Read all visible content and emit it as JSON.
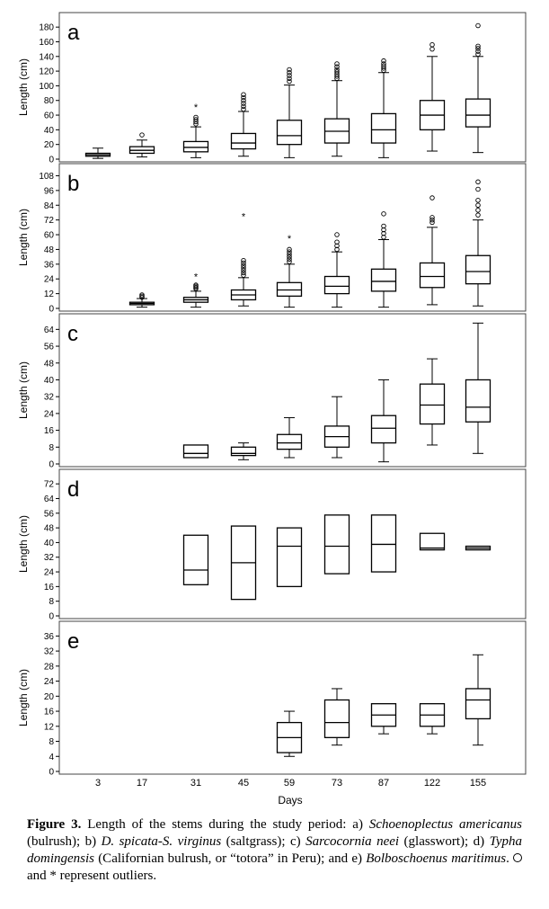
{
  "chart_data": {
    "type": "box",
    "x_categories": [
      "3",
      "17",
      "31",
      "45",
      "59",
      "73",
      "87",
      "122",
      "155"
    ],
    "xlabel": "Days",
    "panels": [
      {
        "letter": "a",
        "ylabel": "Length (cm)",
        "ylim": [
          0,
          190
        ],
        "yticks": [
          0,
          20,
          40,
          60,
          80,
          100,
          120,
          140,
          160,
          180
        ],
        "boxes": [
          {
            "x": "3",
            "min": 1,
            "q1": 4,
            "median": 6,
            "q3": 8,
            "max": 15,
            "outliers": [],
            "extremes": []
          },
          {
            "x": "17",
            "min": 3,
            "q1": 8,
            "median": 12,
            "q3": 17,
            "max": 26,
            "outliers": [
              33
            ],
            "extremes": []
          },
          {
            "x": "31",
            "min": 2,
            "q1": 10,
            "median": 16,
            "q3": 24,
            "max": 44,
            "outliers": [
              48,
              51,
              54,
              57
            ],
            "extremes": [
              71
            ]
          },
          {
            "x": "45",
            "min": 4,
            "q1": 14,
            "median": 22,
            "q3": 35,
            "max": 65,
            "outliers": [
              68,
              72,
              76,
              80,
              84,
              88
            ],
            "extremes": []
          },
          {
            "x": "59",
            "min": 2,
            "q1": 20,
            "median": 32,
            "q3": 53,
            "max": 101,
            "outliers": [
              106,
              110,
              114,
              118,
              122
            ],
            "extremes": []
          },
          {
            "x": "73",
            "min": 4,
            "q1": 22,
            "median": 38,
            "q3": 55,
            "max": 107,
            "outliers": [
              110,
              113,
              116,
              119,
              122,
              126,
              130
            ],
            "extremes": []
          },
          {
            "x": "87",
            "min": 2,
            "q1": 22,
            "median": 40,
            "q3": 62,
            "max": 118,
            "outliers": [
              121,
              124,
              127,
              130,
              134
            ],
            "extremes": []
          },
          {
            "x": "122",
            "min": 11,
            "q1": 40,
            "median": 60,
            "q3": 80,
            "max": 140,
            "outliers": [
              150,
              156
            ],
            "extremes": []
          },
          {
            "x": "155",
            "min": 9,
            "q1": 44,
            "median": 60,
            "q3": 82,
            "max": 140,
            "outliers": [
              143,
              147,
              151,
              154,
              182
            ],
            "extremes": []
          }
        ]
      },
      {
        "letter": "b",
        "ylabel": "Length (cm)",
        "ylim": [
          0,
          112
        ],
        "yticks": [
          0,
          12,
          24,
          36,
          48,
          60,
          72,
          84,
          96,
          108
        ],
        "boxes": [
          {
            "x": "17",
            "min": 1,
            "q1": 3,
            "median": 4,
            "q3": 5,
            "max": 8,
            "outliers": [
              9,
              10,
              11
            ],
            "extremes": []
          },
          {
            "x": "31",
            "min": 1,
            "q1": 5,
            "median": 7,
            "q3": 9,
            "max": 14,
            "outliers": [
              16,
              17,
              18,
              19
            ],
            "extremes": [
              26
            ]
          },
          {
            "x": "45",
            "min": 2,
            "q1": 7,
            "median": 11,
            "q3": 15,
            "max": 25,
            "outliers": [
              27,
              29,
              31,
              33,
              35,
              37,
              39
            ],
            "extremes": [
              75
            ]
          },
          {
            "x": "59",
            "min": 1,
            "q1": 10,
            "median": 15,
            "q3": 21,
            "max": 36,
            "outliers": [
              38,
              40,
              42,
              44,
              46,
              48
            ],
            "extremes": [
              57
            ]
          },
          {
            "x": "73",
            "min": 1,
            "q1": 12,
            "median": 18,
            "q3": 26,
            "max": 46,
            "outliers": [
              48,
              51,
              54,
              60
            ],
            "extremes": []
          },
          {
            "x": "87",
            "min": 1,
            "q1": 14,
            "median": 22,
            "q3": 32,
            "max": 56,
            "outliers": [
              58,
              61,
              64,
              67,
              77
            ],
            "extremes": []
          },
          {
            "x": "122",
            "min": 3,
            "q1": 17,
            "median": 26,
            "q3": 37,
            "max": 66,
            "outliers": [
              70,
              72,
              74,
              90
            ],
            "extremes": []
          },
          {
            "x": "155",
            "min": 2,
            "q1": 20,
            "median": 30,
            "q3": 43,
            "max": 72,
            "outliers": [
              76,
              80,
              84,
              88,
              97,
              103
            ],
            "extremes": []
          }
        ]
      },
      {
        "letter": "c",
        "ylabel": "Length (cm)",
        "ylim": [
          0,
          68
        ],
        "yticks": [
          0,
          8,
          16,
          24,
          32,
          40,
          48,
          56,
          64
        ],
        "boxes": [
          {
            "x": "31",
            "min": 3,
            "q1": 3,
            "median": 5,
            "q3": 9,
            "max": 9,
            "outliers": [],
            "extremes": []
          },
          {
            "x": "45",
            "min": 2,
            "q1": 4,
            "median": 5,
            "q3": 8,
            "max": 10,
            "outliers": [],
            "extremes": []
          },
          {
            "x": "59",
            "min": 3,
            "q1": 7,
            "median": 10,
            "q3": 14,
            "max": 22,
            "outliers": [],
            "extremes": []
          },
          {
            "x": "73",
            "min": 3,
            "q1": 8,
            "median": 13,
            "q3": 18,
            "max": 32,
            "outliers": [],
            "extremes": []
          },
          {
            "x": "87",
            "min": 1,
            "q1": 10,
            "median": 17,
            "q3": 23,
            "max": 40,
            "outliers": [],
            "extremes": []
          },
          {
            "x": "122",
            "min": 9,
            "q1": 19,
            "median": 28,
            "q3": 38,
            "max": 50,
            "outliers": [],
            "extremes": []
          },
          {
            "x": "155",
            "min": 5,
            "q1": 20,
            "median": 27,
            "q3": 40,
            "max": 67,
            "outliers": [],
            "extremes": []
          }
        ]
      },
      {
        "letter": "d",
        "ylabel": "Length (cm)",
        "ylim": [
          0,
          76
        ],
        "yticks": [
          0,
          8,
          16,
          24,
          32,
          40,
          48,
          56,
          64,
          72
        ],
        "boxes": [
          {
            "x": "31",
            "min": 17,
            "q1": 17,
            "median": 25,
            "q3": 44,
            "max": 44,
            "outliers": [],
            "extremes": []
          },
          {
            "x": "45",
            "min": 9,
            "q1": 9,
            "median": 29,
            "q3": 49,
            "max": 49,
            "outliers": [],
            "extremes": []
          },
          {
            "x": "59",
            "min": 16,
            "q1": 16,
            "median": 38,
            "q3": 48,
            "max": 48,
            "outliers": [],
            "extremes": []
          },
          {
            "x": "73",
            "min": 23,
            "q1": 23,
            "median": 38,
            "q3": 55,
            "max": 55,
            "outliers": [],
            "extremes": []
          },
          {
            "x": "87",
            "min": 24,
            "q1": 24,
            "median": 39,
            "q3": 55,
            "max": 55,
            "outliers": [],
            "extremes": []
          },
          {
            "x": "122",
            "min": 36,
            "q1": 36,
            "median": 37,
            "q3": 45,
            "max": 45,
            "outliers": [],
            "extremes": []
          },
          {
            "x": "155",
            "min": 36,
            "q1": 36,
            "median": 37,
            "q3": 38,
            "max": 38,
            "outliers": [],
            "extremes": []
          }
        ]
      },
      {
        "letter": "e",
        "ylabel": "Length (cm)",
        "ylim": [
          0,
          38
        ],
        "yticks": [
          0,
          4,
          8,
          12,
          16,
          20,
          24,
          28,
          32,
          36
        ],
        "boxes": [
          {
            "x": "59",
            "min": 4,
            "q1": 5,
            "median": 9,
            "q3": 13,
            "max": 16,
            "outliers": [],
            "extremes": []
          },
          {
            "x": "73",
            "min": 7,
            "q1": 9,
            "median": 13,
            "q3": 19,
            "max": 22,
            "outliers": [],
            "extremes": []
          },
          {
            "x": "87",
            "min": 10,
            "q1": 12,
            "median": 15,
            "q3": 18,
            "max": 18,
            "outliers": [],
            "extremes": []
          },
          {
            "x": "122",
            "min": 10,
            "q1": 12,
            "median": 15,
            "q3": 18,
            "max": 18,
            "outliers": [],
            "extremes": []
          },
          {
            "x": "155",
            "min": 7,
            "q1": 14,
            "median": 19,
            "q3": 22,
            "max": 31,
            "outliers": [],
            "extremes": []
          }
        ]
      }
    ]
  },
  "caption": {
    "label": "Figure 3.",
    "t1": " Length of the stems during the study period: a) ",
    "s1": "Schoenoplectus americanus",
    "t2": " (bulrush); b) ",
    "s2": "D. spicata-S. virginus",
    "t3": " (saltgrass); c) ",
    "s3": "Sarcocornia neei",
    "t4": " (glasswort); d) ",
    "s4": "Typha domingensis",
    "t5": " (Californian bulrush, or “totora” in Peru); and  e) ",
    "s5": "Bolboschoenus maritimus",
    "t6": ". ",
    "t7": "and * represent outliers."
  }
}
